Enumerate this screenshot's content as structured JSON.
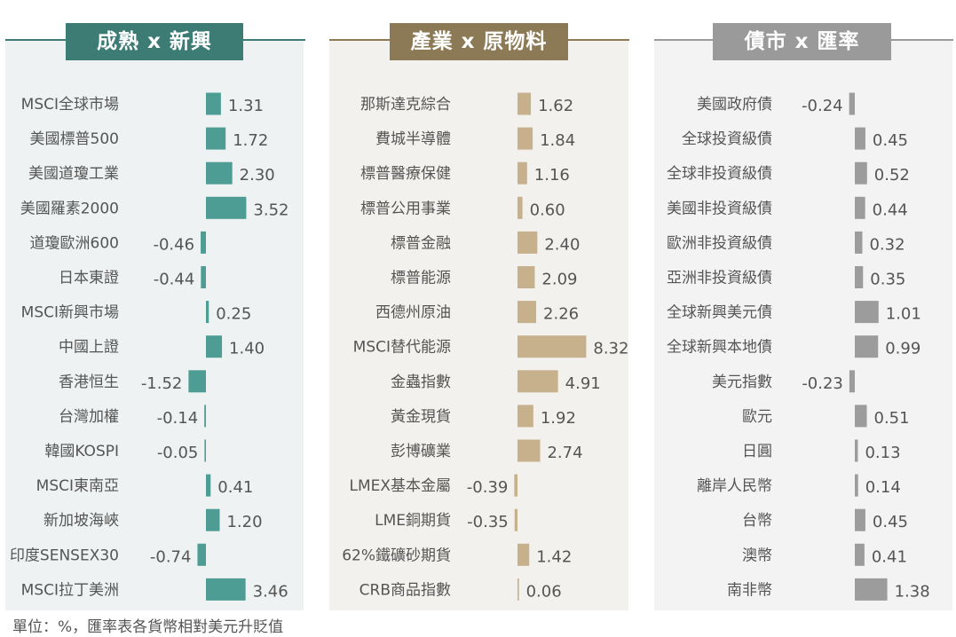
{
  "footnote": "單位：%，匯率表各貨幣相對美元升貶值",
  "colors": {
    "panel1_bg": "#eef2f2",
    "panel1_accent": "#3d7b75",
    "panel1_bar": "#4e9d94",
    "panel2_bg": "#f3f1ed",
    "panel2_accent": "#8c7a57",
    "panel2_bar": "#c7b08c",
    "panel3_bg": "#f3f3f3",
    "panel3_accent": "#9a9a9a",
    "panel3_bar": "#9c9c9c"
  },
  "chart_data": [
    {
      "type": "bar",
      "title": "成熟 x 新興",
      "categories": [
        "MSCI全球市場",
        "美國標普500",
        "美國道瓊工業",
        "美國羅素2000",
        "道瓊歐洲600",
        "日本東證",
        "MSCI新興市場",
        "中國上證",
        "香港恒生",
        "台灣加權",
        "韓國KOSPI",
        "MSCI東南亞",
        "新加坡海峽",
        "印度SENSEX30",
        "MSCI拉丁美洲"
      ],
      "values": [
        1.31,
        1.72,
        2.3,
        3.52,
        -0.46,
        -0.44,
        0.25,
        1.4,
        -1.52,
        -0.14,
        -0.05,
        0.41,
        1.2,
        -0.74,
        3.46
      ],
      "labels": [
        "1.31",
        "1.72",
        "2.30",
        "3.52",
        "-0.46",
        "-0.44",
        "0.25",
        "1.40",
        "-1.52",
        "-0.14",
        "-0.05",
        "0.41",
        "1.20",
        "-0.74",
        "3.46"
      ]
    },
    {
      "type": "bar",
      "title": "產業 x 原物料",
      "categories": [
        "那斯達克綜合",
        "費城半導體",
        "標普醫療保健",
        "標普公用事業",
        "標普金融",
        "標普能源",
        "西德州原油",
        "MSCI替代能源",
        "金蟲指數",
        "黃金現貨",
        "彭博礦業",
        "LMEX基本金屬",
        "LME銅期貨",
        "62%鐵礦砂期貨",
        "CRB商品指數"
      ],
      "values": [
        1.62,
        1.84,
        1.16,
        0.6,
        2.4,
        2.09,
        2.26,
        8.32,
        4.91,
        1.92,
        2.74,
        -0.39,
        -0.35,
        1.42,
        0.06
      ],
      "labels": [
        "1.62",
        "1.84",
        "1.16",
        "0.60",
        "2.40",
        "2.09",
        "2.26",
        "8.32",
        "4.91",
        "1.92",
        "2.74",
        "-0.39",
        "-0.35",
        "1.42",
        "0.06"
      ]
    },
    {
      "type": "bar",
      "title": "債市 x 匯率",
      "categories": [
        "美國政府債",
        "全球投資級債",
        "全球非投資級債",
        "美國非投資級債",
        "歐洲非投資級債",
        "亞洲非投資級債",
        "全球新興美元債",
        "全球新興本地債",
        "美元指數",
        "歐元",
        "日圓",
        "離岸人民幣",
        "台幣",
        "澳幣",
        "南非幣"
      ],
      "values": [
        -0.24,
        0.45,
        0.52,
        0.44,
        0.32,
        0.35,
        1.01,
        0.99,
        -0.23,
        0.51,
        0.13,
        0.14,
        0.45,
        0.41,
        1.38
      ],
      "labels": [
        "-0.24",
        "0.45",
        "0.52",
        "0.44",
        "0.32",
        "0.35",
        "1.01",
        "0.99",
        "-0.23",
        "0.51",
        "0.13",
        "0.14",
        "0.45",
        "0.41",
        "1.38"
      ]
    }
  ]
}
